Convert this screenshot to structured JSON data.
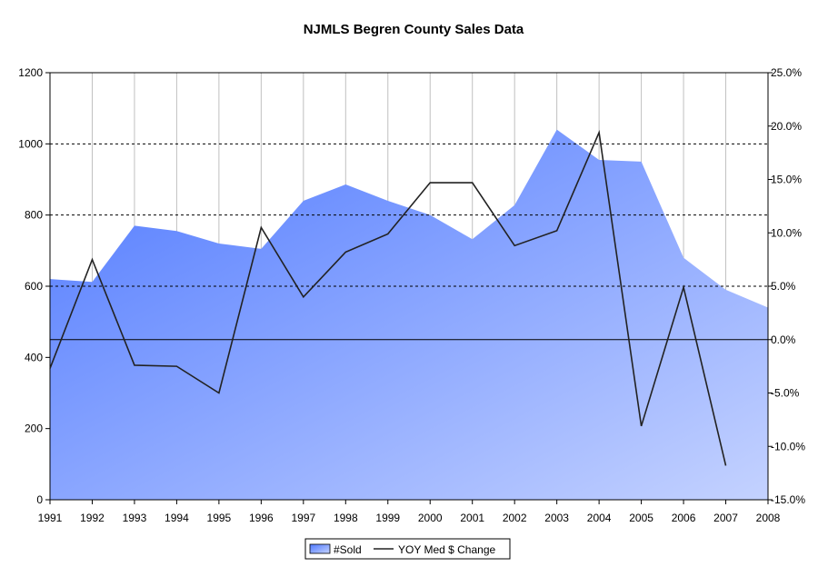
{
  "chart_data": {
    "type": "area",
    "title": "NJMLS Begren County Sales Data",
    "x": [
      "1991",
      "1992",
      "1993",
      "1994",
      "1995",
      "1996",
      "1997",
      "1998",
      "1999",
      "2000",
      "2001",
      "2002",
      "2003",
      "2004",
      "2005",
      "2006",
      "2007",
      "2008"
    ],
    "series": [
      {
        "name": "#Sold",
        "type": "area",
        "axis": "left",
        "values": [
          620,
          612,
          770,
          755,
          720,
          705,
          840,
          886,
          840,
          800,
          732,
          828,
          1040,
          955,
          950,
          680,
          590,
          540
        ]
      },
      {
        "name": "YOY Med $ Change",
        "type": "line",
        "axis": "right",
        "values": [
          -2.7,
          7.5,
          -2.4,
          -2.5,
          -5.0,
          10.5,
          4.0,
          8.2,
          9.9,
          14.7,
          14.7,
          8.8,
          10.2,
          19.4,
          -8.1,
          4.9,
          -11.8,
          null
        ]
      }
    ],
    "y_left": {
      "ylim": [
        0,
        1200
      ],
      "ticks": [
        "0",
        "200",
        "400",
        "600",
        "800",
        "1000",
        "1200"
      ]
    },
    "y_right": {
      "ylim": [
        -15,
        25
      ],
      "ticks": [
        "-15.0%",
        "-10.0%",
        "-5.0%",
        "0.0%",
        "5.0%",
        "10.0%",
        "15.0%",
        "20.0%",
        "25.0%"
      ]
    },
    "gridlines": {
      "vertical": true,
      "horizontal_dashed": [
        600,
        800,
        1000
      ]
    },
    "legend": {
      "position": "bottom",
      "items": [
        "#Sold",
        "YOY Med $ Change"
      ]
    },
    "colors": {
      "area_dark": "#4f79ff",
      "area_light": "#c4d2ff",
      "line": "#222222",
      "grid": "#c0c0c0",
      "axis": "#000000"
    }
  }
}
